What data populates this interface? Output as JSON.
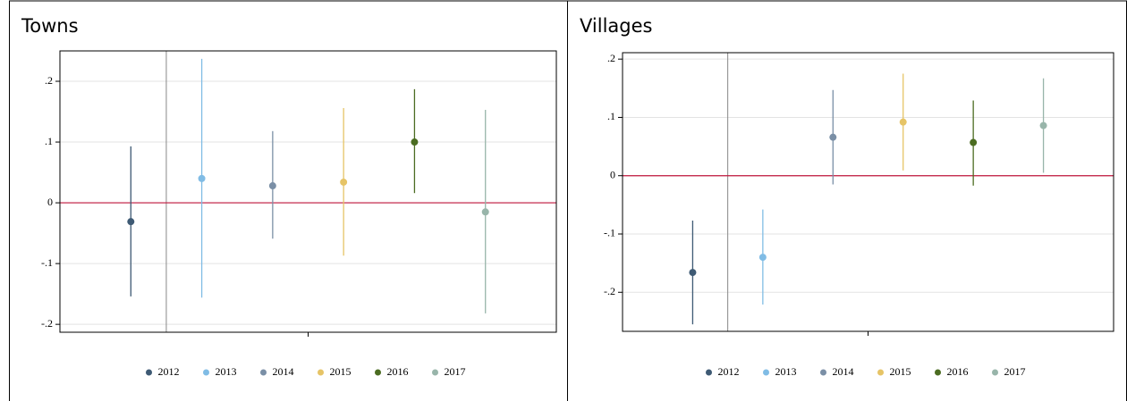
{
  "chart_data": [
    {
      "type": "coefplot",
      "title": "Towns",
      "xlim": [
        0,
        7
      ],
      "ylim": [
        -0.213,
        0.25
      ],
      "yticks": [
        {
          "value": 0.2,
          "label": ".2"
        },
        {
          "value": 0.1,
          "label": ".1"
        },
        0,
        {
          "value": -0.1,
          "label": "-.1"
        },
        {
          "value": -0.2,
          "label": "-.2"
        }
      ],
      "grid": true,
      "xline": 1.5,
      "yline": 0,
      "yline_color": "#c0163c",
      "legend": "bottom",
      "series": [
        {
          "name": "2012",
          "color": "#3e5a74",
          "x": [
            1
          ],
          "values": [
            -0.031
          ],
          "lower": [
            -0.154
          ],
          "upper": [
            0.093
          ]
        },
        {
          "name": "2013",
          "color": "#80bce5",
          "x": [
            2
          ],
          "values": [
            0.04
          ],
          "lower": [
            -0.156
          ],
          "upper": [
            0.237
          ]
        },
        {
          "name": "2014",
          "color": "#7a8fa6",
          "x": [
            3
          ],
          "values": [
            0.028
          ],
          "lower": [
            -0.059
          ],
          "upper": [
            0.118
          ]
        },
        {
          "name": "2015",
          "color": "#e6c466",
          "x": [
            4
          ],
          "values": [
            0.034
          ],
          "lower": [
            -0.087
          ],
          "upper": [
            0.156
          ]
        },
        {
          "name": "2016",
          "color": "#4b6c21",
          "x": [
            5
          ],
          "values": [
            0.1
          ],
          "lower": [
            0.016
          ],
          "upper": [
            0.187
          ]
        },
        {
          "name": "2017",
          "color": "#98b5aa",
          "x": [
            6
          ],
          "values": [
            -0.015
          ],
          "lower": [
            -0.182
          ],
          "upper": [
            0.153
          ]
        }
      ]
    },
    {
      "type": "coefplot",
      "title": "Villages",
      "xlim": [
        0,
        7
      ],
      "ylim": [
        -0.267,
        0.211
      ],
      "yticks": [
        {
          "value": 0.2,
          "label": ".2"
        },
        {
          "value": 0.1,
          "label": ".1"
        },
        0,
        {
          "value": -0.1,
          "label": "-.1"
        },
        {
          "value": -0.2,
          "label": "-.2"
        }
      ],
      "grid": true,
      "xline": 1.5,
      "yline": 0,
      "yline_color": "#c0163c",
      "legend": "bottom",
      "series": [
        {
          "name": "2012",
          "color": "#3e5a74",
          "x": [
            1
          ],
          "values": [
            -0.166
          ],
          "lower": [
            -0.255
          ],
          "upper": [
            -0.077
          ]
        },
        {
          "name": "2013",
          "color": "#80bce5",
          "x": [
            2
          ],
          "values": [
            -0.14
          ],
          "lower": [
            -0.221
          ],
          "upper": [
            -0.058
          ]
        },
        {
          "name": "2014",
          "color": "#7a8fa6",
          "x": [
            3
          ],
          "values": [
            0.066
          ],
          "lower": [
            -0.015
          ],
          "upper": [
            0.147
          ]
        },
        {
          "name": "2015",
          "color": "#e6c466",
          "x": [
            4
          ],
          "values": [
            0.092
          ],
          "lower": [
            0.009
          ],
          "upper": [
            0.175
          ]
        },
        {
          "name": "2016",
          "color": "#4b6c21",
          "x": [
            5
          ],
          "values": [
            0.057
          ],
          "lower": [
            -0.017
          ],
          "upper": [
            0.129
          ]
        },
        {
          "name": "2017",
          "color": "#98b5aa",
          "x": [
            6
          ],
          "values": [
            0.086
          ],
          "lower": [
            0.005
          ],
          "upper": [
            0.167
          ]
        }
      ]
    }
  ]
}
